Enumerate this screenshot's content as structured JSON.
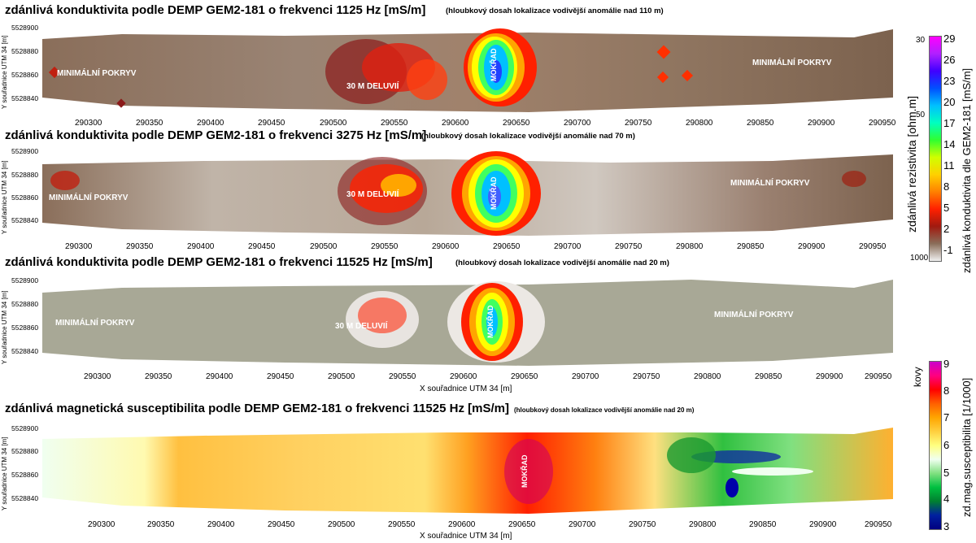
{
  "panels": [
    {
      "title": "zdánlivá konduktivita podle DEMP GEM2-181 o frekvenci 1125 Hz [mS/m]",
      "note": "(hloubkový dosah lokalizace vodivější anomálie nad 110 m)",
      "ylabel": "Y souřadnice UTM 34 [m]",
      "yticks": [
        "5528900",
        "5528880",
        "5528860",
        "5528840"
      ],
      "xticks": [
        "290300",
        "290350",
        "290400",
        "290450",
        "290500",
        "290550",
        "290600",
        "290650",
        "290700",
        "290750",
        "290800",
        "290850",
        "290900",
        "290950"
      ],
      "labels": [
        "MINIMÁLNÍ POKRYV",
        "30 M DELUVIÍ",
        "MOKŘAD",
        "MINIMÁLNÍ POKRYV"
      ]
    },
    {
      "title": "zdánlivá konduktivita podle DEMP GEM2-181 o frekvenci 3275 Hz [mS/m]",
      "note": "(hloubkový dosah lokalizace vodivější anomálie nad 70 m)",
      "ylabel": "Y souřadnice UTM 34 [m]",
      "yticks": [
        "5528900",
        "5528880",
        "5528860",
        "5528840"
      ],
      "xticks": [
        "290300",
        "290350",
        "290400",
        "290450",
        "290500",
        "290550",
        "290600",
        "290650",
        "290700",
        "290750",
        "290800",
        "290850",
        "290900",
        "290950"
      ],
      "labels": [
        "MINIMÁLNÍ POKRYV",
        "30 M DELUVIÍ",
        "MOKŘAD",
        "MINIMÁLNÍ POKRYV"
      ]
    },
    {
      "title": "zdánlivá konduktivita podle DEMP GEM2-181 o frekvenci 11525 Hz [mS/m]",
      "note": "(hloubkový dosah lokalizace vodivější anomálie nad 20 m)",
      "ylabel": "Y souřadnice UTM 34 [m]",
      "yticks": [
        "5528900",
        "5528880",
        "5528860",
        "5528840"
      ],
      "xticks": [
        "290300",
        "290350",
        "290400",
        "290450",
        "290500",
        "290550",
        "290600",
        "290650",
        "290700",
        "290750",
        "290800",
        "290850",
        "290900",
        "290950"
      ],
      "xlabel": "X souřadnice UTM 34 [m]",
      "labels": [
        "MINIMÁLNÍ POKRYV",
        "30 M DELUVIÍ",
        "MOKŘAD",
        "MINIMÁLNÍ POKRYV"
      ]
    },
    {
      "title": "zdánlivá magnetická susceptibilita podle DEMP GEM2-181 o frekvenci 11525 Hz [mS/m]",
      "note": "(hloubkový dosah lokalizace vodivější anomálie nad 20 m)",
      "ylabel": "Y souřadnice UTM 34 [m]",
      "yticks": [
        "5528900",
        "5528880",
        "5528860",
        "5528840"
      ],
      "xticks": [
        "290300",
        "290350",
        "290400",
        "290450",
        "290500",
        "290550",
        "290600",
        "290650",
        "290700",
        "290750",
        "290800",
        "290850",
        "290900",
        "290950"
      ],
      "xlabel": "X souřadnice UTM 34 [m]",
      "labels": [
        "MOKŘAD"
      ]
    }
  ],
  "colorbar_conductivity": {
    "ticks": [
      "29",
      "26",
      "23",
      "20",
      "17",
      "14",
      "11",
      "8",
      "5",
      "2",
      "-1"
    ],
    "resistivity_ticks": [
      "30",
      "50",
      "1000"
    ],
    "label_right": "zdánlivá konduktivita dle GEM2-181 [mS/m]",
    "label_left": "zdánlivá rezistivita   [ohm.m]",
    "colors": [
      "#ff00ff",
      "#a020f0",
      "#0000ff",
      "#00bfff",
      "#00ffc0",
      "#00ff00",
      "#ffff00",
      "#ffa500",
      "#ff0000",
      "#8b1a1a",
      "#7a5c48"
    ]
  },
  "colorbar_susceptibility": {
    "ticks": [
      "9",
      "8",
      "7",
      "6",
      "5",
      "4",
      "3"
    ],
    "label_right": "zd.mag.susceptibilita [1/1000]",
    "label_left": "kovy",
    "colors": [
      "#cc00cc",
      "#ff0000",
      "#ffa500",
      "#ffff66",
      "#f0fff0",
      "#00cc44",
      "#0000aa"
    ]
  }
}
